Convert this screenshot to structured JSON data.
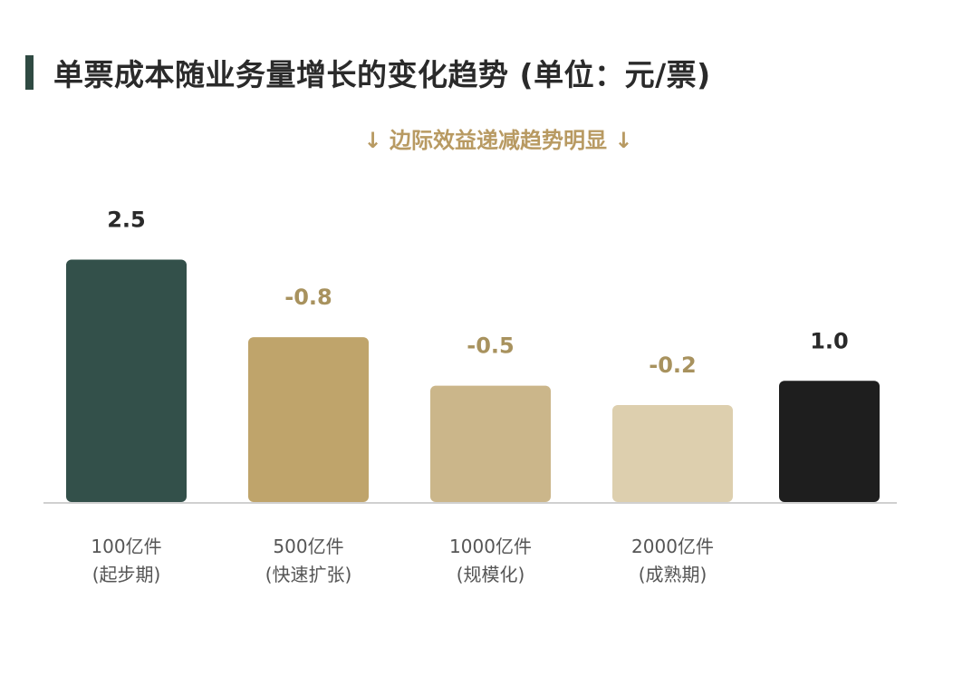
{
  "title": "单票成本随业务量增长的变化趋势 (单位：元/票)",
  "subtitle": "↓ 边际效益递减趋势明显 ↓",
  "chart_data": {
    "type": "bar",
    "title": "单票成本随业务量增长的变化趋势 (单位：元/票)",
    "subtitle": "↓ 边际效益递减趋势明显 ↓",
    "categories": [
      "100亿件\n(起步期)",
      "500亿件\n(快速扩张)",
      "1000亿件\n(规模化)",
      "2000亿件\n(成熟期)",
      ""
    ],
    "values": [
      2.5,
      -0.8,
      -0.5,
      -0.2,
      1.0
    ],
    "value_labels": [
      "2.5",
      "-0.8",
      "-0.5",
      "-0.2",
      "1.0"
    ],
    "colors": [
      "#33504a",
      "#bfa46b",
      "#cbb68a",
      "#ddcfae",
      "#1e1e1e"
    ],
    "label_colors": [
      "#2a2a2a",
      "#a8925e",
      "#a8925e",
      "#a8925e",
      "#2a2a2a"
    ],
    "grid": false,
    "legend": "none"
  }
}
